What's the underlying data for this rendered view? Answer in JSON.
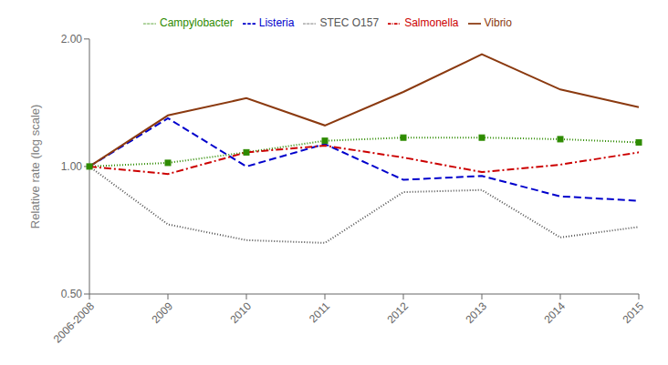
{
  "chart_data": {
    "type": "line",
    "categories": [
      "2006-2008",
      "2009",
      "2010",
      "2011",
      "2012",
      "2013",
      "2014",
      "2015"
    ],
    "series": [
      {
        "name": "Campylobacter",
        "color": "#2e8b00",
        "values": [
          1.0,
          1.02,
          1.08,
          1.15,
          1.17,
          1.17,
          1.16,
          1.14
        ],
        "line_style": "dotted",
        "marker": "square"
      },
      {
        "name": "STEC O157",
        "color": "#555555",
        "values": [
          1.0,
          0.73,
          0.67,
          0.66,
          0.87,
          0.88,
          0.68,
          0.72
        ],
        "line_style": "dotted",
        "marker": "none"
      },
      {
        "name": "Listeria",
        "color": "#0000cc",
        "values": [
          1.0,
          1.3,
          1.0,
          1.13,
          0.93,
          0.95,
          0.85,
          0.83
        ],
        "line_style": "dashed",
        "marker": "none"
      },
      {
        "name": "Salmonella",
        "color": "#cc0000",
        "values": [
          1.0,
          0.96,
          1.08,
          1.12,
          1.05,
          0.97,
          1.01,
          1.08
        ],
        "line_style": "dashdot",
        "marker": "none"
      },
      {
        "name": "Vibrio",
        "color": "#8b3a10",
        "values": [
          1.0,
          1.32,
          1.45,
          1.25,
          1.5,
          1.84,
          1.52,
          1.38
        ],
        "line_style": "solid",
        "marker": "none"
      }
    ],
    "ylabel": "Relative rate (log scale)",
    "log": "y",
    "ylim": [
      0.5,
      2.0
    ],
    "yticks": [
      {
        "value": 0.5,
        "label": "0.50"
      },
      {
        "value": 1.0,
        "label": "1.00"
      },
      {
        "value": 2.0,
        "label": "2.00"
      }
    ],
    "grid": false,
    "legend": "top"
  }
}
